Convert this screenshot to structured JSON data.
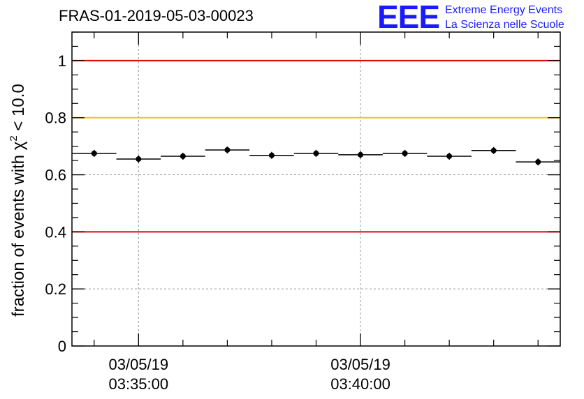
{
  "title": "FRAS-01-2019-05-03-00023",
  "logo": {
    "mark": "EEE",
    "line1": "Extreme Energy Events",
    "line2": "La Scienza nelle Scuole",
    "color": "#1a1aff"
  },
  "chart_data": {
    "type": "scatter",
    "title": "FRAS-01-2019-05-03-00023",
    "ylabel_prefix": "fraction of events with χ",
    "ylabel_sup": "2",
    "ylabel_suffix": " < 10.0",
    "ylim": [
      0,
      1.1
    ],
    "yticks": [
      {
        "value": 0,
        "label": "0"
      },
      {
        "value": 0.2,
        "label": "0.2"
      },
      {
        "value": 0.4,
        "label": "0.4"
      },
      {
        "value": 0.6,
        "label": "0.6"
      },
      {
        "value": 0.8,
        "label": "0.8"
      },
      {
        "value": 1.0,
        "label": "1"
      }
    ],
    "xlim": [
      "03/05/19 03:33:30",
      "03/05/19 03:44:30"
    ],
    "xticks": [
      {
        "value": "03/05/19 03:35:00",
        "label_date": "03/05/19",
        "label_time": "03:35:00"
      },
      {
        "value": "03/05/19 03:40:00",
        "label_date": "03/05/19",
        "label_time": "03:40:00"
      }
    ],
    "grid": true,
    "reference_lines": [
      {
        "value": 1.0,
        "color": "#e00000"
      },
      {
        "value": 0.8,
        "color": "#ffc400"
      },
      {
        "value": 0.4,
        "color": "#e00000"
      }
    ],
    "bin_width_seconds": 60,
    "points": [
      {
        "x": "03/05/19 03:34:00",
        "y": 0.675
      },
      {
        "x": "03/05/19 03:35:00",
        "y": 0.655
      },
      {
        "x": "03/05/19 03:36:00",
        "y": 0.665
      },
      {
        "x": "03/05/19 03:37:00",
        "y": 0.687
      },
      {
        "x": "03/05/19 03:38:00",
        "y": 0.668
      },
      {
        "x": "03/05/19 03:39:00",
        "y": 0.675
      },
      {
        "x": "03/05/19 03:40:00",
        "y": 0.67
      },
      {
        "x": "03/05/19 03:41:00",
        "y": 0.675
      },
      {
        "x": "03/05/19 03:42:00",
        "y": 0.665
      },
      {
        "x": "03/05/19 03:43:00",
        "y": 0.685
      },
      {
        "x": "03/05/19 03:44:00",
        "y": 0.645
      }
    ]
  }
}
